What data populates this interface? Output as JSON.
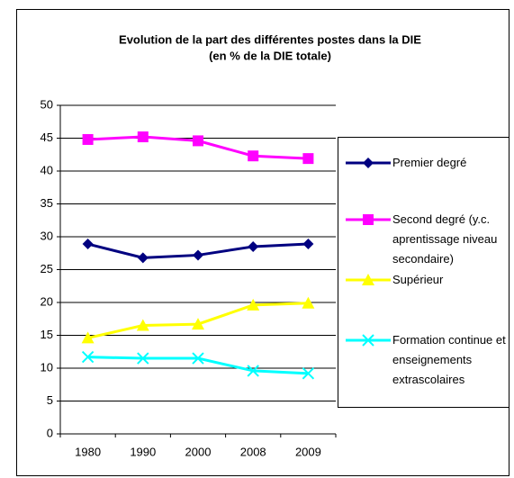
{
  "chart_data": {
    "type": "line",
    "title": "Evolution de la part des différentes postes dans la DIE",
    "subtitle": "(en % de la DIE totale)",
    "categories": [
      "1980",
      "1990",
      "2000",
      "2008",
      "2009"
    ],
    "series": [
      {
        "name": "Premier degré",
        "color": "#000080",
        "marker": "diamond",
        "values": [
          28.9,
          26.8,
          27.2,
          28.5,
          28.9
        ]
      },
      {
        "name": "Second degré (y.c. aprentissage niveau secondaire)",
        "color": "#ff00ff",
        "marker": "square",
        "values": [
          44.8,
          45.2,
          44.6,
          42.3,
          41.9
        ]
      },
      {
        "name": "Supérieur",
        "color": "#ffff00",
        "marker": "triangle",
        "values": [
          14.6,
          16.5,
          16.7,
          19.6,
          19.9
        ]
      },
      {
        "name": "Formation continue et enseignements extrascolaires",
        "color": "#00ffff",
        "marker": "x",
        "values": [
          11.7,
          11.5,
          11.5,
          9.6,
          9.2
        ]
      }
    ],
    "ylim": [
      0,
      50
    ],
    "yticks": [
      0,
      5,
      10,
      15,
      20,
      25,
      30,
      35,
      40,
      45,
      50
    ],
    "grid": true,
    "legend": "right"
  }
}
